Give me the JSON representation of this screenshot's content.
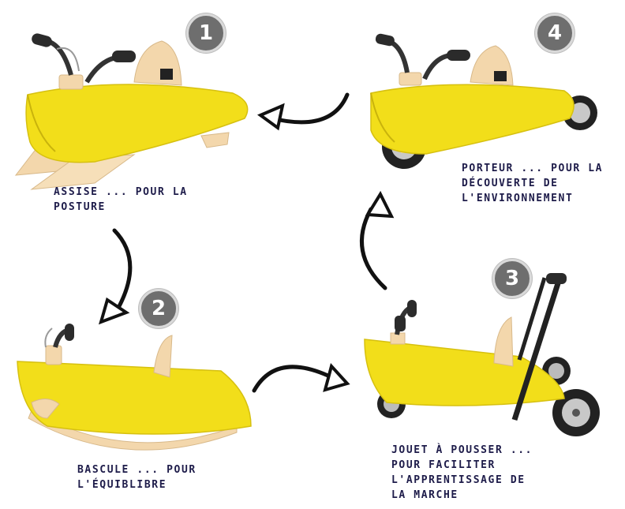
{
  "colors": {
    "body_yellow": "#f2de1a",
    "wood": "#f3d7ac",
    "handle": "#2b2b2b",
    "caption_text": "#1e1c4a",
    "badge_fill": "#6e6e6e",
    "arrow": "#111111"
  },
  "steps": [
    {
      "number": "1",
      "lines": [
        "ASSISE ... POUR LA",
        "POSTURE"
      ]
    },
    {
      "number": "2",
      "lines": [
        "BASCULE ... POUR",
        "L'ÉQUIBLIBRE"
      ]
    },
    {
      "number": "3",
      "lines": [
        "JOUET À POUSSER ...",
        "POUR FACILITER",
        "L'APPRENTISSAGE DE",
        "LA MARCHE"
      ]
    },
    {
      "number": "4",
      "lines": [
        "PORTEUR ... POUR LA",
        "DÉCOUVERTE DE",
        "L'ENVIRONNEMENT"
      ]
    }
  ]
}
